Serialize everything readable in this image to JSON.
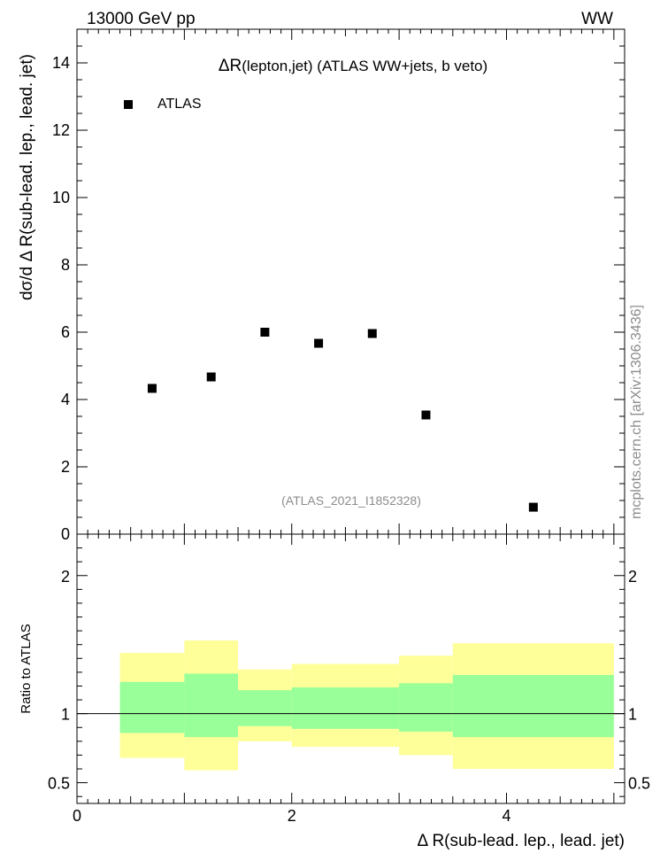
{
  "header": {
    "left": "13000 GeV pp",
    "right": "WW",
    "side_note": "mcplots.cern.ch [arXiv:1306.3436]"
  },
  "chart_data": [
    {
      "type": "scatter",
      "title": "ΔR(lepton,jet) (ATLAS WW+jets, b veto)",
      "title_main": "ΔR",
      "title_rest": "(lepton,jet) (ATLAS WW+jets, b veto)",
      "analysis_label": "(ATLAS_2021_I1852328)",
      "ylabel": "dσ/d Δ R(sub-lead. lep., lead. jet)",
      "xlim": [
        0,
        5.1
      ],
      "ylim": [
        0,
        15
      ],
      "y_ticks": [
        0,
        2,
        4,
        6,
        8,
        10,
        12,
        14
      ],
      "y_tick_labels": [
        "0",
        "2",
        "4",
        "6",
        "8",
        "10",
        "12",
        "14"
      ],
      "legend": {
        "placement": "top-left",
        "entries": [
          "ATLAS"
        ]
      },
      "series": [
        {
          "name": "ATLAS",
          "x": [
            0.7,
            1.25,
            1.75,
            2.25,
            2.75,
            3.25,
            4.25
          ],
          "y": [
            4.33,
            4.67,
            6.0,
            5.67,
            5.96,
            3.54,
            0.8
          ]
        }
      ]
    },
    {
      "type": "area",
      "ylabel": "Ratio to ATLAS",
      "xlabel": "Δ R(sub-lead. lep., lead. jet)",
      "xlim": [
        0,
        5.1
      ],
      "ylim": [
        0.35,
        2.3
      ],
      "x_ticks": [
        0,
        2,
        4
      ],
      "x_tick_labels": [
        "0",
        "2",
        "4"
      ],
      "y_ticks": [
        0.5,
        1,
        2
      ],
      "y_tick_labels": [
        "0.5",
        "1",
        "2"
      ],
      "reference_line": 1,
      "bins": [
        {
          "lo": 0.4,
          "hi": 1.0,
          "inner": [
            0.86,
            1.23
          ],
          "outer": [
            0.68,
            1.44
          ]
        },
        {
          "lo": 1.0,
          "hi": 1.5,
          "inner": [
            0.83,
            1.29
          ],
          "outer": [
            0.59,
            1.53
          ]
        },
        {
          "lo": 1.5,
          "hi": 2.0,
          "inner": [
            0.91,
            1.17
          ],
          "outer": [
            0.8,
            1.32
          ]
        },
        {
          "lo": 2.0,
          "hi": 3.0,
          "inner": [
            0.89,
            1.19
          ],
          "outer": [
            0.76,
            1.36
          ]
        },
        {
          "lo": 3.0,
          "hi": 3.5,
          "inner": [
            0.87,
            1.22
          ],
          "outer": [
            0.7,
            1.42
          ]
        },
        {
          "lo": 3.5,
          "hi": 5.0,
          "inner": [
            0.83,
            1.28
          ],
          "outer": [
            0.6,
            1.51
          ]
        }
      ],
      "colors": {
        "inner": "#99ff99",
        "outer": "#ffff99",
        "line": "#000000"
      }
    }
  ]
}
